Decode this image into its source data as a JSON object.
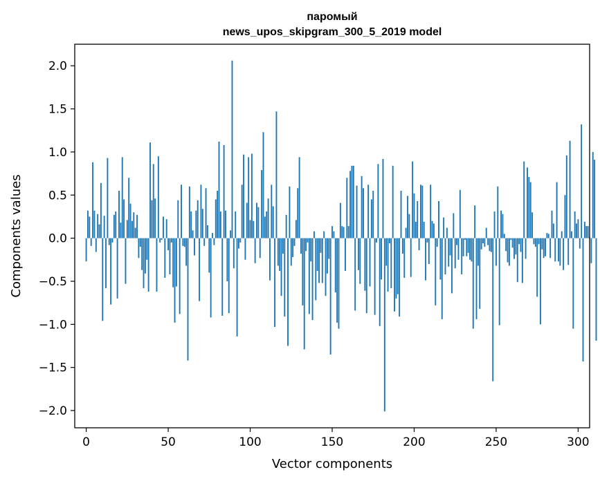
{
  "chart_data": {
    "type": "bar",
    "title": "паромый",
    "subtitle": "news_upos_skipgram_300_5_2019 model",
    "xlabel": "Vector components",
    "ylabel": "Components values",
    "xlim": [
      -7,
      307
    ],
    "ylim": [
      -2.2,
      2.25
    ],
    "xticks": [
      0,
      50,
      100,
      150,
      200,
      250,
      300
    ],
    "yticks": [
      -2.0,
      -1.5,
      -1.0,
      -0.5,
      0.0,
      0.5,
      1.0,
      1.5,
      2.0
    ],
    "ytick_labels": [
      "−2.0",
      "−1.5",
      "−1.0",
      "−0.5",
      "0.0",
      "0.5",
      "1.0",
      "1.5",
      "2.0"
    ],
    "grid": false,
    "bar_color": "#1f77b4",
    "values": [
      -0.27,
      0.32,
      0.25,
      -0.09,
      0.88,
      0.32,
      -0.16,
      0.28,
      0.16,
      0.64,
      -0.96,
      0.26,
      -0.58,
      0.93,
      -0.08,
      -0.77,
      -0.05,
      0.27,
      0.31,
      -0.7,
      0.55,
      0.18,
      0.94,
      0.45,
      -0.53,
      0.21,
      0.7,
      0.4,
      0.2,
      0.3,
      0.12,
      0.27,
      -0.23,
      -0.1,
      -0.37,
      -0.58,
      -0.41,
      -0.25,
      -0.62,
      1.11,
      0.44,
      0.86,
      0.46,
      -0.62,
      0.95,
      -0.05,
      -0.02,
      0.25,
      -0.46,
      0.22,
      -0.14,
      -0.42,
      -0.05,
      -0.57,
      -0.98,
      -0.56,
      0.44,
      -0.88,
      0.62,
      -0.09,
      -0.1,
      -0.32,
      -1.42,
      0.6,
      0.31,
      0.09,
      -0.2,
      0.32,
      0.44,
      -0.73,
      0.62,
      0.34,
      -0.09,
      0.58,
      0.15,
      -0.4,
      -0.92,
      0.06,
      -0.08,
      0.45,
      0.55,
      1.12,
      0.31,
      -0.9,
      1.08,
      0.32,
      -0.5,
      -0.87,
      0.09,
      2.06,
      -0.35,
      0.31,
      -1.14,
      -0.12,
      -0.05,
      0.62,
      0.97,
      -0.25,
      0.41,
      0.94,
      0.21,
      0.98,
      0.2,
      -0.29,
      0.41,
      0.36,
      -0.23,
      0.79,
      1.23,
      0.25,
      0.31,
      0.46,
      -0.49,
      0.62,
      0.37,
      -1.03,
      1.47,
      -0.32,
      -0.38,
      -0.67,
      -0.18,
      -0.91,
      0.27,
      -1.25,
      0.6,
      -0.32,
      -0.22,
      -0.09,
      0.21,
      0.58,
      0.94,
      -0.18,
      -0.78,
      -1.29,
      -0.15,
      -0.05,
      -0.88,
      -0.27,
      -0.95,
      0.08,
      -0.72,
      -0.38,
      -0.52,
      -0.17,
      -0.52,
      0.08,
      -0.67,
      -0.41,
      -0.24,
      -1.35,
      0.14,
      0.08,
      -0.63,
      -0.98,
      -1.05,
      0.41,
      0.14,
      0.13,
      -0.38,
      0.7,
      0.14,
      0.78,
      0.84,
      0.84,
      -0.84,
      0.61,
      -0.37,
      -0.53,
      0.72,
      0.58,
      -0.61,
      -0.87,
      0.62,
      -0.56,
      0.45,
      0.55,
      -0.89,
      -0.05,
      0.86,
      -1.02,
      -0.48,
      0.92,
      -2.01,
      -0.32,
      -0.62,
      -0.06,
      -0.58,
      0.84,
      -0.85,
      -0.7,
      -0.65,
      -0.91,
      0.55,
      -0.18,
      -0.46,
      0.12,
      0.49,
      0.28,
      -0.45,
      0.89,
      0.52,
      0.19,
      0.43,
      -0.14,
      0.62,
      0.61,
      0.19,
      -0.49,
      -0.05,
      -0.3,
      0.62,
      0.2,
      0.17,
      -0.78,
      -0.1,
      0.43,
      -0.48,
      -0.94,
      0.24,
      -0.42,
      0.12,
      -0.33,
      -0.2,
      -0.64,
      0.29,
      -0.35,
      -0.08,
      -0.25,
      0.56,
      -0.42,
      -0.21,
      -0.02,
      -0.21,
      -0.17,
      -0.25,
      -0.27,
      -1.05,
      0.38,
      -0.94,
      -0.32,
      -0.82,
      -0.13,
      -0.06,
      -0.1,
      0.12,
      -0.08,
      -0.15,
      -0.16,
      -1.66,
      0.31,
      -0.32,
      0.6,
      -1.01,
      0.32,
      0.28,
      0.05,
      -0.15,
      -0.28,
      -0.32,
      -0.02,
      -0.11,
      -0.24,
      -0.19,
      -0.51,
      -0.07,
      -0.16,
      -0.52,
      0.89,
      -0.24,
      0.82,
      0.71,
      0.65,
      0.3,
      -0.07,
      -0.1,
      -0.68,
      -0.07,
      -1.0,
      -0.13,
      -0.23,
      -0.21,
      0.06,
      0.05,
      -0.23,
      0.32,
      0.17,
      -0.27,
      0.65,
      -0.27,
      -0.32,
      0.08,
      -0.37,
      0.5,
      0.96,
      -0.31,
      1.13,
      0.08,
      -1.05,
      0.31,
      0.17,
      0.22,
      -0.12,
      1.32,
      -1.43,
      0.19,
      0.14,
      0.14,
      0.01,
      -0.29,
      1.0,
      0.91,
      -1.19
    ]
  }
}
